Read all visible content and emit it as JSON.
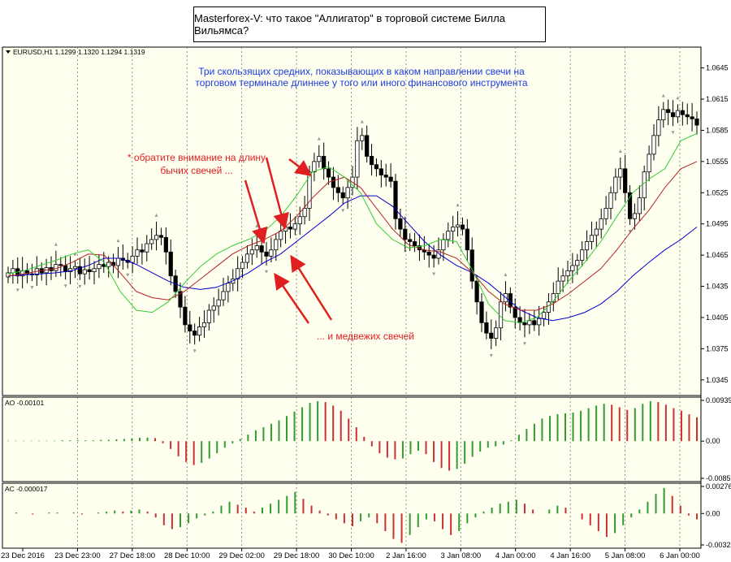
{
  "title": "Masterforex-V: что такое \"Аллигатор\" в торговой системе Билла Вильямса?",
  "colors": {
    "background": "#ffffff",
    "chart_bg": "#fffff0",
    "jaw": "#0000cd",
    "teeth": "#b22222",
    "lips": "#32cd32",
    "osc_up": "#2e9e2e",
    "osc_down": "#c83232",
    "annotation_blue": "#1c3cdc",
    "annotation_red": "#e02020"
  },
  "icons": {
    "symbol_marker": "triangle-down-icon"
  },
  "main_panel": {
    "header": "EURUSD,H1  1.1299 1.1320 1.1294 1.1319",
    "yticks": [
      "1.0645",
      "1.0615",
      "1.0585",
      "1.0555",
      "1.0525",
      "1.0495",
      "1.0465",
      "1.0435",
      "1.0405",
      "1.0375",
      "1.0345"
    ],
    "annotation_top_line1": "Три скользящих средних, показывающих в каком направлении свечи на",
    "annotation_top_line2": "торговом терминале длиннее у того или иного финансового инструмента",
    "annotation_bull_line1": "* обратите внимание на длину",
    "annotation_bull_line2": "бычих свечей ...",
    "annotation_bear": "... и медвежих свечей"
  },
  "ao_panel": {
    "label": "AO -0.00101",
    "yticks": [
      "0.00939",
      "0.00",
      "-0.00857"
    ]
  },
  "ac_panel": {
    "label": "AC -0.000017",
    "yticks": [
      "0.00276",
      "0.00",
      "-0.003213"
    ]
  },
  "xticks": [
    "23 Dec 2016",
    "23 Dec 23:00",
    "27 Dec 18:00",
    "28 Dec 10:00",
    "29 Dec 02:00",
    "29 Dec 18:00",
    "30 Dec 10:00",
    "2 Jan 16:00",
    "3 Jan 08:00",
    "4 Jan 00:00",
    "4 Jan 16:00",
    "5 Jan 08:00",
    "6 Jan 00:00"
  ],
  "chart_data": [
    {
      "type": "candlestick",
      "symbol": "EURUSD",
      "timeframe": "H1",
      "ylim": [
        1.033,
        1.0665
      ],
      "x_categories": [
        "23 Dec 2016",
        "23 Dec 23:00",
        "27 Dec 18:00",
        "28 Dec 10:00",
        "29 Dec 02:00",
        "29 Dec 18:00",
        "30 Dec 10:00",
        "2 Jan 16:00",
        "3 Jan 08:00",
        "4 Jan 00:00",
        "4 Jan 16:00",
        "5 Jan 08:00",
        "6 Jan 00:00"
      ],
      "close_path": [
        1.0448,
        1.0452,
        1.0445,
        1.045,
        1.0447,
        1.0446,
        1.0452,
        1.0448,
        1.0453,
        1.045,
        1.0456,
        1.0455,
        1.0449,
        1.0452,
        1.0454,
        1.0447,
        1.0451,
        1.0449,
        1.0452,
        1.0456,
        1.0454,
        1.0458,
        1.0455,
        1.0462,
        1.046,
        1.0458,
        1.0464,
        1.047,
        1.0468,
        1.0476,
        1.048,
        1.0484,
        1.0482,
        1.0468,
        1.0445,
        1.043,
        1.0415,
        1.0398,
        1.0392,
        1.0388,
        1.0396,
        1.04,
        1.0412,
        1.0416,
        1.0422,
        1.043,
        1.0438,
        1.0442,
        1.0452,
        1.0458,
        1.0466,
        1.047,
        1.0474,
        1.0468,
        1.0464,
        1.047,
        1.048,
        1.0488,
        1.0492,
        1.049,
        1.0495,
        1.0502,
        1.051,
        1.0545,
        1.0555,
        1.056,
        1.0548,
        1.054,
        1.053,
        1.0525,
        1.052,
        1.053,
        1.054,
        1.0575,
        1.058,
        1.056,
        1.0552,
        1.0548,
        1.0542,
        1.054,
        1.0536,
        1.05,
        1.049,
        1.048,
        1.0478,
        1.0474,
        1.047,
        1.0468,
        1.0465,
        1.0462,
        1.047,
        1.048,
        1.0488,
        1.0492,
        1.0494,
        1.049,
        1.047,
        1.044,
        1.042,
        1.04,
        1.039,
        1.0385,
        1.0395,
        1.042,
        1.0428,
        1.0415,
        1.0405,
        1.04,
        1.0398,
        1.0402,
        1.0398,
        1.0404,
        1.041,
        1.042,
        1.0428,
        1.044,
        1.0445,
        1.045,
        1.0455,
        1.046,
        1.047,
        1.0478,
        1.0484,
        1.049,
        1.05,
        1.051,
        1.0525,
        1.054,
        1.0548,
        1.0525,
        1.05,
        1.0505,
        1.052,
        1.0545,
        1.0562,
        1.058,
        1.0595,
        1.0605,
        1.0602,
        1.0598,
        1.0604,
        1.06,
        1.0598,
        1.0596,
        1.059
      ],
      "jaw": {
        "name": "",
        "values": [
          1.0445,
          1.0446,
          1.0447,
          1.0448,
          1.045,
          1.0455,
          1.0462,
          1.0462,
          1.0456,
          1.0448,
          1.044,
          1.0434,
          1.0432,
          1.0434,
          1.044,
          1.0448,
          1.0458,
          1.0466,
          1.0478,
          1.049,
          1.0502,
          1.0515,
          1.0522,
          1.0522,
          1.0512,
          1.0495,
          1.0478,
          1.0465,
          1.0455,
          1.0448,
          1.0438,
          1.0425,
          1.0412,
          1.0405,
          1.0402,
          1.0405,
          1.041,
          1.0418,
          1.043,
          1.0445,
          1.0458,
          1.047,
          1.048,
          1.0492
        ]
      },
      "teeth": {
        "name": "",
        "values": [
          1.0445,
          1.0447,
          1.045,
          1.0452,
          1.0458,
          1.0466,
          1.0465,
          1.0448,
          1.043,
          1.0424,
          1.0422,
          1.043,
          1.0442,
          1.0454,
          1.0466,
          1.0474,
          1.048,
          1.0488,
          1.0502,
          1.052,
          1.0535,
          1.054,
          1.053,
          1.051,
          1.049,
          1.0475,
          1.047,
          1.0468,
          1.0462,
          1.0448,
          1.043,
          1.0418,
          1.0412,
          1.0412,
          1.0418,
          1.0428,
          1.044,
          1.0452,
          1.047,
          1.049,
          1.0508,
          1.053,
          1.0548,
          1.0555
        ]
      },
      "lips": {
        "name": "",
        "values": [
          1.0447,
          1.045,
          1.0455,
          1.046,
          1.0466,
          1.047,
          1.0458,
          1.043,
          1.0412,
          1.041,
          1.042,
          1.0438,
          1.0454,
          1.0466,
          1.0474,
          1.048,
          1.0488,
          1.0502,
          1.0522,
          1.0545,
          1.055,
          1.054,
          1.0525,
          1.0495,
          1.048,
          1.0472,
          1.0474,
          1.048,
          1.0478,
          1.045,
          1.0418,
          1.0402,
          1.04,
          1.0405,
          1.042,
          1.044,
          1.0458,
          1.0478,
          1.0502,
          1.0525,
          1.0538,
          1.0548,
          1.0575,
          1.0582
        ]
      }
    },
    {
      "type": "bar",
      "name": "AO",
      "ylim": [
        -0.00857,
        0.00939
      ],
      "values": [
        0.0001,
        0.0001,
        0.0001,
        0.0001,
        0.0001,
        0.0001,
        0.0001,
        0.0002,
        0.0002,
        0.0002,
        0.0002,
        0.0002,
        0.0003,
        0.0003,
        0.0004,
        0.0005,
        0.0006,
        0.0008,
        0.0008,
        0.0007,
        -0.0005,
        -0.0018,
        -0.0035,
        -0.0048,
        -0.0055,
        -0.005,
        -0.004,
        -0.0028,
        -0.0015,
        -0.0005,
        0.0005,
        0.0015,
        0.0025,
        0.0032,
        0.004,
        0.0048,
        0.0058,
        0.0068,
        0.0078,
        0.0088,
        0.0092,
        0.009,
        0.0082,
        0.007,
        0.0052,
        0.0032,
        0.001,
        -0.0012,
        -0.0028,
        -0.0038,
        -0.0042,
        -0.004,
        -0.003,
        -0.0022,
        -0.003,
        -0.0048,
        -0.0062,
        -0.0068,
        -0.0064,
        -0.0052,
        -0.0036,
        -0.0024,
        -0.0015,
        -0.0012,
        -0.0008,
        0.0002,
        0.0015,
        0.0028,
        0.004,
        0.0052,
        0.0058,
        0.0062,
        0.0064,
        0.0066,
        0.007,
        0.0076,
        0.0082,
        0.0086,
        0.0084,
        0.0078,
        0.0072,
        0.0076,
        0.0086,
        0.0092,
        0.009,
        0.0084,
        0.0076,
        0.007,
        0.0062,
        0.0055
      ]
    },
    {
      "type": "bar",
      "name": "AC",
      "ylim": [
        -0.003213,
        0.00276
      ],
      "values": [
        0.0,
        0.0001,
        0.0,
        -0.0001,
        0.0,
        0.0001,
        0.0001,
        0.0,
        0.0001,
        -0.0001,
        0.0,
        0.0001,
        0.0002,
        0.0003,
        0.0002,
        0.0003,
        0.0004,
        0.0002,
        -0.0004,
        -0.0012,
        -0.0016,
        -0.0014,
        -0.001,
        -0.0005,
        -0.0002,
        0.0002,
        0.0008,
        0.0012,
        0.0009,
        0.0006,
        0.0002,
        0.0006,
        0.001,
        0.0014,
        0.0018,
        0.0022,
        0.0015,
        0.0008,
        0.0003,
        -0.0002,
        -0.0006,
        -0.001,
        -0.0013,
        -0.0008,
        -0.0004,
        -0.001,
        -0.0018,
        -0.0026,
        -0.003,
        -0.0022,
        -0.0014,
        -0.0006,
        -0.0008,
        -0.0016,
        -0.0022,
        -0.0018,
        -0.001,
        -0.0004,
        0.0002,
        0.0006,
        0.001,
        0.0012,
        0.0014,
        0.001,
        0.0004,
        0.0,
        0.0004,
        0.0008,
        0.0006,
        0.0,
        -0.0006,
        -0.0012,
        -0.0018,
        -0.0024,
        -0.002,
        -0.0012,
        -0.0004,
        0.0004,
        0.0012,
        0.002,
        0.0026,
        0.0018,
        0.0008,
        -0.0002,
        -0.0006
      ]
    }
  ]
}
